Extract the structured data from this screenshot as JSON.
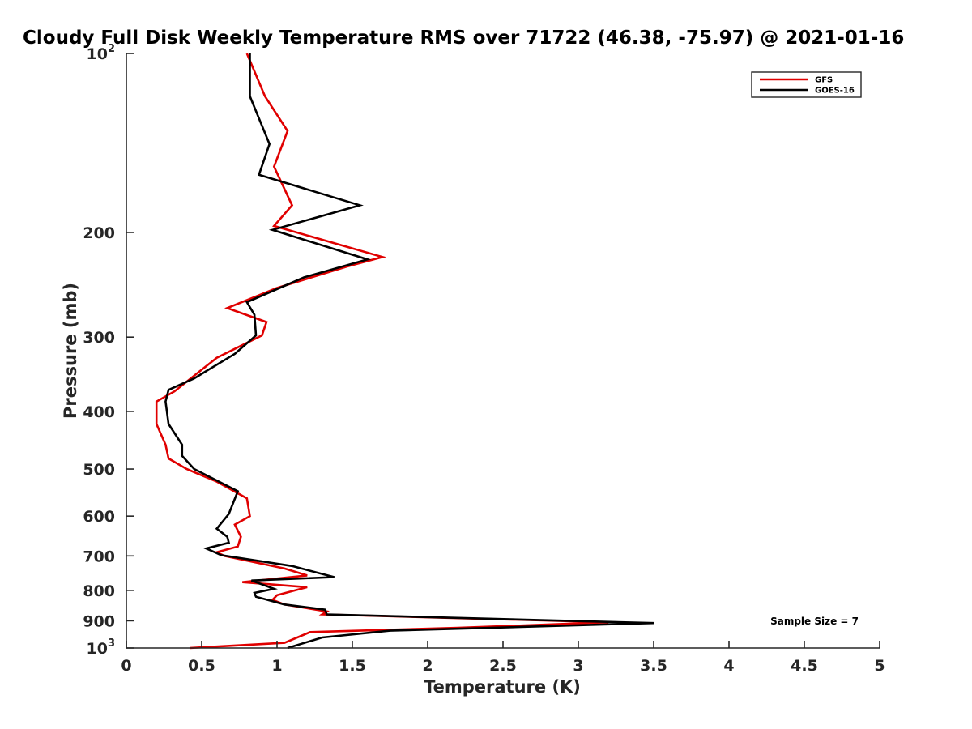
{
  "chart_data": {
    "type": "line",
    "title": "Cloudy Full Disk Weekly Temperature RMS over 71722 (46.38, -75.97) @ 2021-01-16",
    "xlabel": "Temperature (K)",
    "ylabel": "Pressure (mb)",
    "xlim": [
      0,
      5
    ],
    "ylim": [
      100,
      1000
    ],
    "y_scale": "log",
    "y_reversed": true,
    "grid": false,
    "legend_position": "top-right",
    "x_ticks": [
      0,
      0.5,
      1,
      1.5,
      2,
      2.5,
      3,
      3.5,
      4,
      4.5,
      5
    ],
    "x_tick_labels": [
      "0",
      "0.5",
      "1",
      "1.5",
      "2",
      "2.5",
      "3",
      "3.5",
      "4",
      "4.5",
      "5"
    ],
    "y_ticks": [
      100,
      200,
      300,
      400,
      500,
      600,
      700,
      800,
      900,
      1000
    ],
    "y_tick_labels": [
      {
        "base": "10",
        "exp": "2"
      },
      {
        "base": "200",
        "exp": ""
      },
      {
        "base": "300",
        "exp": ""
      },
      {
        "base": "400",
        "exp": ""
      },
      {
        "base": "500",
        "exp": ""
      },
      {
        "base": "600",
        "exp": ""
      },
      {
        "base": "700",
        "exp": ""
      },
      {
        "base": "800",
        "exp": ""
      },
      {
        "base": "900",
        "exp": ""
      },
      {
        "base": "10",
        "exp": "3"
      }
    ],
    "annotation": "Sample Size = 7",
    "series": [
      {
        "name": "GFS",
        "color": "#e00000",
        "points": [
          [
            0.8,
            100
          ],
          [
            0.92,
            118
          ],
          [
            1.07,
            135
          ],
          [
            0.98,
            155
          ],
          [
            1.1,
            180
          ],
          [
            0.98,
            195
          ],
          [
            1.7,
            220
          ],
          [
            1.47,
            228
          ],
          [
            1.0,
            248
          ],
          [
            0.67,
            268
          ],
          [
            0.93,
            283
          ],
          [
            0.9,
            298
          ],
          [
            0.6,
            325
          ],
          [
            0.32,
            370
          ],
          [
            0.2,
            385
          ],
          [
            0.2,
            420
          ],
          [
            0.26,
            455
          ],
          [
            0.28,
            480
          ],
          [
            0.4,
            500
          ],
          [
            0.6,
            525
          ],
          [
            0.8,
            560
          ],
          [
            0.82,
            600
          ],
          [
            0.72,
            620
          ],
          [
            0.76,
            650
          ],
          [
            0.74,
            675
          ],
          [
            0.6,
            690
          ],
          [
            0.65,
            700
          ],
          [
            1.05,
            735
          ],
          [
            1.2,
            755
          ],
          [
            0.77,
            775
          ],
          [
            1.2,
            790
          ],
          [
            1.0,
            815
          ],
          [
            0.97,
            830
          ],
          [
            1.05,
            845
          ],
          [
            1.33,
            868
          ],
          [
            1.3,
            878
          ],
          [
            3.2,
            905
          ],
          [
            2.2,
            925
          ],
          [
            1.22,
            940
          ],
          [
            1.05,
            980
          ],
          [
            0.42,
            1000
          ]
        ]
      },
      {
        "name": "GOES-16",
        "color": "#000000",
        "points": [
          [
            0.82,
            100
          ],
          [
            0.82,
            118
          ],
          [
            0.95,
            142
          ],
          [
            0.88,
            160
          ],
          [
            1.55,
            180
          ],
          [
            0.97,
            198
          ],
          [
            1.6,
            222
          ],
          [
            1.18,
            238
          ],
          [
            0.8,
            262
          ],
          [
            0.85,
            275
          ],
          [
            0.86,
            298
          ],
          [
            0.72,
            320
          ],
          [
            0.45,
            352
          ],
          [
            0.28,
            368
          ],
          [
            0.26,
            385
          ],
          [
            0.28,
            420
          ],
          [
            0.37,
            455
          ],
          [
            0.37,
            475
          ],
          [
            0.45,
            500
          ],
          [
            0.74,
            545
          ],
          [
            0.68,
            595
          ],
          [
            0.6,
            630
          ],
          [
            0.67,
            650
          ],
          [
            0.68,
            665
          ],
          [
            0.53,
            680
          ],
          [
            0.63,
            698
          ],
          [
            1.1,
            728
          ],
          [
            1.38,
            760
          ],
          [
            0.83,
            770
          ],
          [
            0.98,
            795
          ],
          [
            0.85,
            808
          ],
          [
            0.86,
            820
          ],
          [
            1.05,
            845
          ],
          [
            1.32,
            862
          ],
          [
            1.33,
            878
          ],
          [
            3.5,
            908
          ],
          [
            1.75,
            935
          ],
          [
            1.3,
            960
          ],
          [
            1.07,
            1000
          ]
        ]
      }
    ]
  }
}
